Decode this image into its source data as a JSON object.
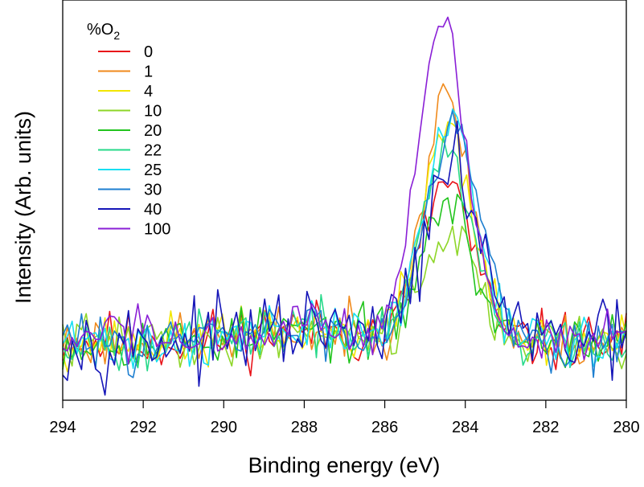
{
  "chart_data": {
    "type": "line",
    "xlabel": "Binding energy (eV)",
    "ylabel": "Intensity (Arb. units)",
    "xlim": [
      294,
      280
    ],
    "ylim": [
      0,
      1
    ],
    "x_reversed": true,
    "x_ticks": [
      294,
      292,
      290,
      288,
      286,
      284,
      282,
      280
    ],
    "y_ticks_shown": false,
    "grid": false,
    "legend": {
      "title_main": "%O",
      "title_sub": "2",
      "placement": "top-left"
    },
    "series": [
      {
        "name": "0",
        "color": "#e8141a",
        "amplitude": 0.48,
        "center": 284.45,
        "width": 0.62,
        "noise": 0.045,
        "seed": 11
      },
      {
        "name": "1",
        "color": "#f08a1c",
        "amplitude": 0.72,
        "center": 284.45,
        "width": 0.62,
        "noise": 0.04,
        "seed": 23
      },
      {
        "name": "4",
        "color": "#f2e600",
        "amplitude": 0.65,
        "center": 284.45,
        "width": 0.62,
        "noise": 0.04,
        "seed": 37
      },
      {
        "name": "10",
        "color": "#8ed628",
        "amplitude": 0.33,
        "center": 284.4,
        "width": 0.65,
        "noise": 0.04,
        "seed": 41
      },
      {
        "name": "20",
        "color": "#22c41e",
        "amplitude": 0.42,
        "center": 284.45,
        "width": 0.62,
        "noise": 0.04,
        "seed": 53
      },
      {
        "name": "22",
        "color": "#27d98a",
        "amplitude": 0.56,
        "center": 284.45,
        "width": 0.62,
        "noise": 0.04,
        "seed": 67
      },
      {
        "name": "25",
        "color": "#18dff2",
        "amplitude": 0.67,
        "center": 284.35,
        "width": 0.65,
        "noise": 0.04,
        "seed": 71
      },
      {
        "name": "30",
        "color": "#1e7fd0",
        "amplitude": 0.66,
        "center": 284.3,
        "width": 0.68,
        "noise": 0.04,
        "seed": 83
      },
      {
        "name": "40",
        "color": "#1515b8",
        "amplitude": 0.51,
        "center": 284.3,
        "width": 0.7,
        "noise": 0.055,
        "seed": 97
      },
      {
        "name": "100",
        "color": "#8a1fd6",
        "amplitude": 0.95,
        "center": 284.55,
        "width": 0.62,
        "noise": 0.04,
        "seed": 103
      }
    ]
  }
}
